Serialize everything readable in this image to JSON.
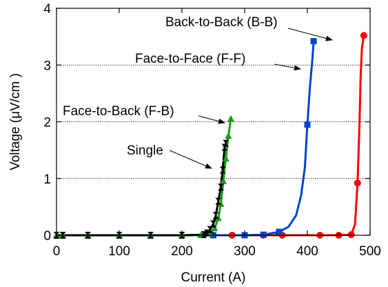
{
  "chart_data": {
    "type": "line",
    "title": "",
    "xlabel": "Current (A)",
    "ylabel": "Voltage (μV/cm )",
    "xlim": [
      0,
      500
    ],
    "ylim": [
      0,
      4
    ],
    "x_ticks": [
      "0",
      "100",
      "200",
      "300",
      "400",
      "500"
    ],
    "y_ticks": [
      "0",
      "1",
      "2",
      "3",
      "4"
    ],
    "grid": "horizontal dotted",
    "legend": "none",
    "series": [
      {
        "name": "Single",
        "color": "#000000",
        "marker": "hourglass",
        "points": [
          [
            0,
            0
          ],
          [
            10,
            0
          ],
          [
            50,
            0
          ],
          [
            100,
            0
          ],
          [
            150,
            0
          ],
          [
            200,
            0
          ],
          [
            230,
            0.01
          ],
          [
            240,
            0.04
          ],
          [
            245,
            0.1
          ],
          [
            250,
            0.2
          ],
          [
            254,
            0.35
          ],
          [
            258,
            0.6
          ],
          [
            262,
            0.85
          ],
          [
            265,
            1.15
          ],
          [
            268,
            1.55
          ],
          [
            270,
            1.62
          ]
        ],
        "markers": [
          [
            0,
            0
          ],
          [
            10,
            0
          ],
          [
            50,
            0
          ],
          [
            100,
            0
          ],
          [
            150,
            0
          ],
          [
            200,
            0
          ],
          [
            235,
            0.01
          ],
          [
            240,
            0.04
          ],
          [
            245,
            0.1
          ],
          [
            250,
            0.2
          ],
          [
            254,
            0.35
          ],
          [
            258,
            0.6
          ],
          [
            262,
            0.85
          ],
          [
            265,
            1.15
          ],
          [
            268,
            1.55
          ],
          [
            270,
            1.62
          ]
        ]
      },
      {
        "name": "Face-to-Back (F-B)",
        "color": "#1a9a1a",
        "marker": "triangle",
        "points": [
          [
            0,
            0
          ],
          [
            10,
            0
          ],
          [
            50,
            0
          ],
          [
            100,
            0
          ],
          [
            150,
            0
          ],
          [
            200,
            0
          ],
          [
            230,
            0
          ],
          [
            245,
            0.03
          ],
          [
            252,
            0.12
          ],
          [
            258,
            0.3
          ],
          [
            262,
            0.55
          ],
          [
            266,
            0.95
          ],
          [
            270,
            1.35
          ],
          [
            274,
            1.75
          ],
          [
            278,
            2.05
          ]
        ],
        "markers": [
          [
            0,
            0
          ],
          [
            10,
            0
          ],
          [
            50,
            0
          ],
          [
            100,
            0
          ],
          [
            150,
            0
          ],
          [
            200,
            0
          ],
          [
            230,
            0
          ],
          [
            245,
            0.03
          ],
          [
            252,
            0.12
          ],
          [
            258,
            0.3
          ],
          [
            262,
            0.55
          ],
          [
            266,
            0.95
          ],
          [
            270,
            1.35
          ],
          [
            274,
            1.75
          ],
          [
            278,
            2.05
          ]
        ]
      },
      {
        "name": "Face-to-Face (F-F)",
        "color": "#0044cc",
        "marker": "square",
        "points": [
          [
            250,
            0
          ],
          [
            300,
            0
          ],
          [
            330,
            0.01
          ],
          [
            355,
            0.06
          ],
          [
            370,
            0.15
          ],
          [
            382,
            0.35
          ],
          [
            390,
            0.7
          ],
          [
            396,
            1.2
          ],
          [
            400,
            1.95
          ],
          [
            404,
            2.6
          ],
          [
            408,
            3.1
          ],
          [
            410,
            3.42
          ]
        ],
        "markers": [
          [
            250,
            0
          ],
          [
            300,
            0
          ],
          [
            330,
            0.01
          ],
          [
            355,
            0.06
          ],
          [
            400,
            1.95
          ],
          [
            410,
            3.42
          ]
        ]
      },
      {
        "name": "Back-to-Back (B-B)",
        "color": "#ff0000",
        "marker": "circle",
        "points": [
          [
            250,
            0
          ],
          [
            280,
            0
          ],
          [
            330,
            0
          ],
          [
            360,
            0
          ],
          [
            420,
            0
          ],
          [
            450,
            0
          ],
          [
            470,
            0.01
          ],
          [
            476,
            0.2
          ],
          [
            480,
            0.92
          ],
          [
            483,
            1.9
          ],
          [
            485,
            2.8
          ],
          [
            487,
            3.3
          ],
          [
            490,
            3.52
          ]
        ],
        "markers": [
          [
            280,
            0
          ],
          [
            330,
            0
          ],
          [
            360,
            0
          ],
          [
            420,
            0
          ],
          [
            450,
            0
          ],
          [
            470,
            0.01
          ],
          [
            480,
            0.92
          ],
          [
            490,
            3.52
          ]
        ]
      }
    ],
    "annotations": [
      {
        "text": "Back-to-Back (B-B)",
        "series": "Back-to-Back (B-B)"
      },
      {
        "text": "Face-to-Face (F-F)",
        "series": "Face-to-Face (F-F)"
      },
      {
        "text": "Face-to-Back (F-B)",
        "series": "Face-to-Back (F-B)"
      },
      {
        "text": "Single",
        "series": "Single"
      }
    ]
  }
}
